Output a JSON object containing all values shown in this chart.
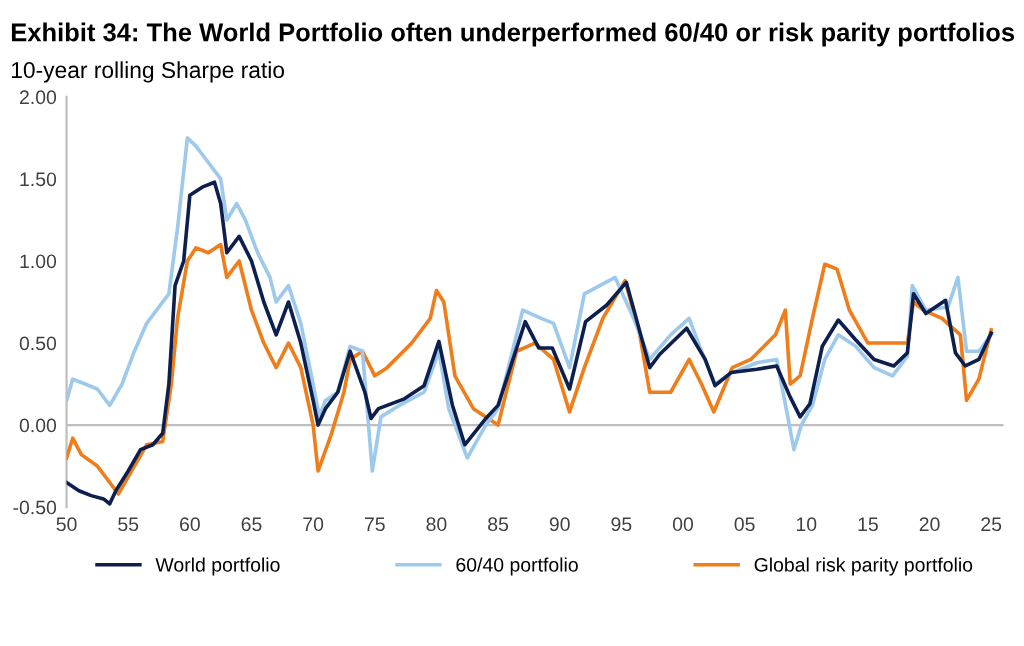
{
  "chart_data": {
    "type": "line",
    "title": "Exhibit 34: The World Portfolio often underperformed 60/40 or risk parity portfolios",
    "subtitle": "10-year rolling Sharpe ratio",
    "xlim": [
      1950,
      2026
    ],
    "xticks": [
      {
        "value": 1950,
        "label": "50"
      },
      {
        "value": 1955,
        "label": "55"
      },
      {
        "value": 1960,
        "label": "60"
      },
      {
        "value": 1965,
        "label": "65"
      },
      {
        "value": 1970,
        "label": "70"
      },
      {
        "value": 1975,
        "label": "75"
      },
      {
        "value": 1980,
        "label": "80"
      },
      {
        "value": 1985,
        "label": "85"
      },
      {
        "value": 1990,
        "label": "90"
      },
      {
        "value": 1995,
        "label": "95"
      },
      {
        "value": 2000,
        "label": "00"
      },
      {
        "value": 2005,
        "label": "05"
      },
      {
        "value": 2010,
        "label": "10"
      },
      {
        "value": 2015,
        "label": "15"
      },
      {
        "value": 2020,
        "label": "20"
      },
      {
        "value": 2025,
        "label": "25"
      }
    ],
    "ylim": [
      -0.5,
      2.0
    ],
    "yticks": [
      {
        "value": -0.5,
        "label": "-0.50"
      },
      {
        "value": 0,
        "label": "0.00"
      },
      {
        "value": 0.5,
        "label": "0.50"
      },
      {
        "value": 1.0,
        "label": "1.00"
      },
      {
        "value": 1.5,
        "label": "1.50"
      },
      {
        "value": 2.0,
        "label": "2.00"
      }
    ],
    "grid": false,
    "legend": "bottom",
    "ref_lines": [
      {
        "axis": "y",
        "value": 0,
        "color": "#bfbfbf"
      }
    ],
    "series": [
      {
        "name": "World portfolio",
        "color": "#0d1f4f",
        "x": [
          1950,
          1951,
          1952,
          1953,
          1953.5,
          1954,
          1955,
          1956,
          1957,
          1957.8,
          1958.3,
          1958.8,
          1959.5,
          1960,
          1961,
          1962,
          1962.5,
          1963,
          1964,
          1965,
          1966,
          1967,
          1968,
          1969,
          1970,
          1970.4,
          1971,
          1972,
          1973,
          1974.2,
          1974.7,
          1975.3,
          1977.4,
          1979,
          1980.2,
          1981.3,
          1982.3,
          1984,
          1985,
          1987.2,
          1988.3,
          1989.4,
          1990.8,
          1992.1,
          1993.8,
          1995.4,
          1997.3,
          1998.1,
          2000.3,
          2001.8,
          2002.6,
          2003.9,
          2006,
          2007.6,
          2008.7,
          2009.5,
          2010.3,
          2011.3,
          2012.6,
          2014,
          2015.5,
          2017.1,
          2018.2,
          2018.7,
          2019.7,
          2021.3,
          2022.1,
          2022.9,
          2024,
          2025
        ],
        "values": [
          -0.35,
          -0.4,
          -0.43,
          -0.45,
          -0.48,
          -0.4,
          -0.28,
          -0.15,
          -0.12,
          -0.05,
          0.25,
          0.85,
          1.0,
          1.4,
          1.45,
          1.48,
          1.35,
          1.05,
          1.15,
          1.0,
          0.75,
          0.55,
          0.75,
          0.5,
          0.15,
          0.0,
          0.1,
          0.2,
          0.45,
          0.2,
          0.04,
          0.1,
          0.16,
          0.24,
          0.51,
          0.12,
          -0.12,
          0.04,
          0.12,
          0.63,
          0.47,
          0.47,
          0.22,
          0.63,
          0.73,
          0.87,
          0.35,
          0.43,
          0.59,
          0.4,
          0.24,
          0.32,
          0.34,
          0.36,
          0.17,
          0.05,
          0.13,
          0.48,
          0.64,
          0.52,
          0.4,
          0.36,
          0.44,
          0.8,
          0.68,
          0.76,
          0.44,
          0.36,
          0.4,
          0.56
        ]
      },
      {
        "name": "60/40 portfolio",
        "color": "#9dc9ec",
        "x": [
          1950,
          1950.5,
          1951.5,
          1952.5,
          1953.5,
          1954.5,
          1955.5,
          1956.5,
          1957.5,
          1958.3,
          1959,
          1959.8,
          1960.5,
          1961.5,
          1962.5,
          1963,
          1963.8,
          1964.5,
          1965.5,
          1966.5,
          1967,
          1968,
          1969,
          1970,
          1970.5,
          1971,
          1972,
          1973,
          1974,
          1974.8,
          1975.5,
          1977,
          1979,
          1980.2,
          1981,
          1982.5,
          1984,
          1985,
          1987,
          1988.5,
          1989.5,
          1990.8,
          1992,
          1994.5,
          1996,
          1997.3,
          1999,
          2000.5,
          2001.5,
          2002.6,
          2004,
          2006,
          2007.6,
          2008.5,
          2009,
          2009.6,
          2010.5,
          2011.5,
          2012.6,
          2014,
          2015.5,
          2017,
          2018.2,
          2018.6,
          2019.7,
          2021.5,
          2022.3,
          2023,
          2024,
          2025
        ],
        "values": [
          0.15,
          0.28,
          0.25,
          0.22,
          0.12,
          0.25,
          0.45,
          0.62,
          0.72,
          0.8,
          1.2,
          1.75,
          1.7,
          1.6,
          1.5,
          1.25,
          1.35,
          1.25,
          1.05,
          0.9,
          0.75,
          0.85,
          0.62,
          0.25,
          0.05,
          0.15,
          0.2,
          0.48,
          0.45,
          -0.28,
          0.05,
          0.12,
          0.2,
          0.45,
          0.1,
          -0.2,
          0.0,
          0.1,
          0.7,
          0.65,
          0.62,
          0.35,
          0.8,
          0.9,
          0.65,
          0.4,
          0.55,
          0.65,
          0.45,
          0.25,
          0.32,
          0.38,
          0.4,
          0.05,
          -0.15,
          0.0,
          0.12,
          0.4,
          0.55,
          0.48,
          0.35,
          0.3,
          0.42,
          0.85,
          0.7,
          0.72,
          0.9,
          0.45,
          0.45,
          0.55
        ]
      },
      {
        "name": "Global risk parity portfolio",
        "color": "#f07d1a",
        "x": [
          1950,
          1950.5,
          1951.2,
          1952.5,
          1953.5,
          1954.2,
          1955.5,
          1956.5,
          1957.8,
          1958.5,
          1959,
          1959.8,
          1960.5,
          1961.5,
          1962.5,
          1963,
          1964,
          1965,
          1966,
          1967,
          1968,
          1969,
          1970,
          1970.4,
          1971.5,
          1972.5,
          1973,
          1974,
          1975,
          1976,
          1978,
          1979.5,
          1980,
          1980.6,
          1981.5,
          1983,
          1985,
          1986.5,
          1988,
          1989.5,
          1990.8,
          1992,
          1993.5,
          1995.3,
          1996.5,
          1997.3,
          1999,
          2000.5,
          2001.5,
          2002.5,
          2004,
          2005.5,
          2007.5,
          2008.3,
          2008.7,
          2009.5,
          2010.5,
          2011.5,
          2012.5,
          2013.5,
          2015,
          2016.5,
          2018.2,
          2018.7,
          2019.5,
          2021,
          2022.5,
          2023,
          2024,
          2025
        ],
        "values": [
          -0.2,
          -0.08,
          -0.18,
          -0.25,
          -0.35,
          -0.42,
          -0.25,
          -0.12,
          -0.1,
          0.25,
          0.65,
          1.0,
          1.08,
          1.05,
          1.1,
          0.9,
          1.0,
          0.7,
          0.5,
          0.35,
          0.5,
          0.35,
          0.0,
          -0.28,
          -0.05,
          0.2,
          0.4,
          0.45,
          0.3,
          0.35,
          0.5,
          0.65,
          0.82,
          0.75,
          0.3,
          0.1,
          0.0,
          0.45,
          0.5,
          0.4,
          0.08,
          0.35,
          0.65,
          0.88,
          0.55,
          0.2,
          0.2,
          0.4,
          0.25,
          0.08,
          0.35,
          0.4,
          0.55,
          0.7,
          0.25,
          0.3,
          0.65,
          0.98,
          0.95,
          0.7,
          0.5,
          0.5,
          0.5,
          0.75,
          0.7,
          0.65,
          0.55,
          0.15,
          0.28,
          0.58
        ]
      }
    ]
  }
}
